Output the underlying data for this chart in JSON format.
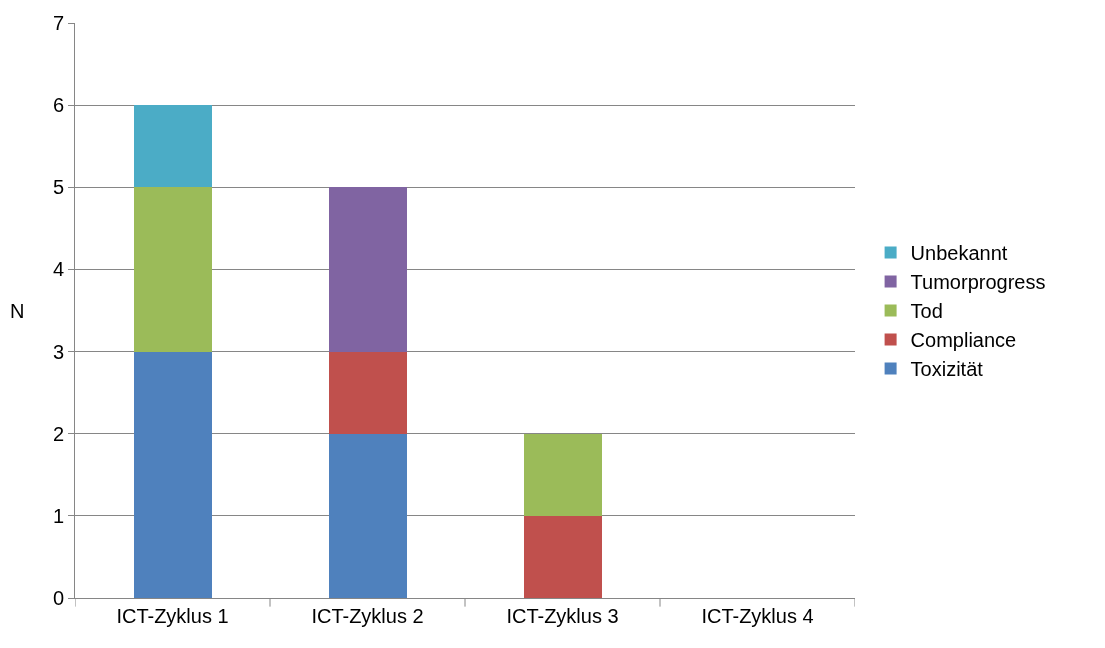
{
  "chart_data": {
    "type": "bar",
    "stacked": true,
    "ylabel": "N",
    "categories": [
      "ICT-Zyklus 1",
      "ICT-Zyklus 2",
      "ICT-Zyklus 3",
      "ICT-Zyklus 4"
    ],
    "series": [
      {
        "name": "Toxizität",
        "color": "#4f81bd",
        "values": [
          3,
          2,
          0,
          0
        ]
      },
      {
        "name": "Compliance",
        "color": "#c0504d",
        "values": [
          0,
          1,
          1,
          0
        ]
      },
      {
        "name": "Tod",
        "color": "#9bbb59",
        "values": [
          2,
          0,
          1,
          0
        ]
      },
      {
        "name": "Tumorprogress",
        "color": "#8064a2",
        "values": [
          0,
          2,
          0,
          0
        ]
      },
      {
        "name": "Unbekannt",
        "color": "#4bacc6",
        "values": [
          1,
          0,
          0,
          0
        ]
      }
    ],
    "ylim": [
      0,
      7
    ],
    "yticks": [
      0,
      1,
      2,
      3,
      4,
      5,
      6,
      7
    ],
    "grid": "y",
    "legend": "right"
  }
}
